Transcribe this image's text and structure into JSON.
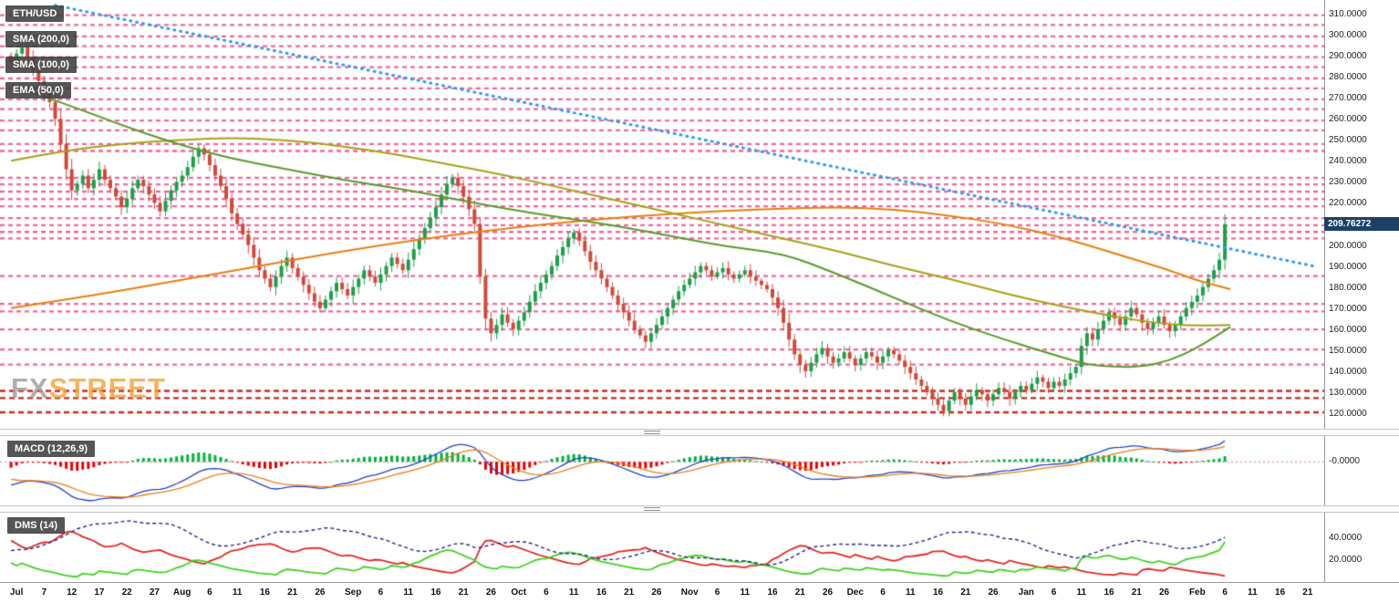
{
  "watermark": {
    "part1": "FX",
    "part2": "STREET"
  },
  "colors": {
    "up": "#1e9e4b",
    "down": "#cf4a3c",
    "trendline": "#2e9bf0",
    "pivot_pink": "#f4679d",
    "pivot_red": "#cc2a1e",
    "macd_line": "#2242c8",
    "macd_signal": "#ef7d1a",
    "hist_up": "#00b33c",
    "hist_down": "#e60000",
    "di_plus": "#3fd321",
    "di_minus": "#e02824",
    "adx": "#26268c",
    "price_badge_bg": "#1c4068"
  },
  "chart_data": {
    "type": "candlestick-multi-panel",
    "symbol": "ETH/USD",
    "x_axis": {
      "day_min": -2,
      "day_max": 238,
      "ticks": [
        {
          "day": 1,
          "label": "Jul"
        },
        {
          "day": 6,
          "label": "7"
        },
        {
          "day": 11,
          "label": "12"
        },
        {
          "day": 16,
          "label": "17"
        },
        {
          "day": 21,
          "label": "22"
        },
        {
          "day": 26,
          "label": "27"
        },
        {
          "day": 31,
          "label": "Aug"
        },
        {
          "day": 36,
          "label": "6"
        },
        {
          "day": 41,
          "label": "11"
        },
        {
          "day": 46,
          "label": "16"
        },
        {
          "day": 51,
          "label": "21"
        },
        {
          "day": 56,
          "label": "26"
        },
        {
          "day": 62,
          "label": "Sep"
        },
        {
          "day": 67,
          "label": "6"
        },
        {
          "day": 72,
          "label": "11"
        },
        {
          "day": 77,
          "label": "16"
        },
        {
          "day": 82,
          "label": "21"
        },
        {
          "day": 87,
          "label": "26"
        },
        {
          "day": 92,
          "label": "Oct"
        },
        {
          "day": 97,
          "label": "6"
        },
        {
          "day": 102,
          "label": "11"
        },
        {
          "day": 107,
          "label": "16"
        },
        {
          "day": 112,
          "label": "21"
        },
        {
          "day": 117,
          "label": "26"
        },
        {
          "day": 123,
          "label": "Nov"
        },
        {
          "day": 128,
          "label": "6"
        },
        {
          "day": 133,
          "label": "11"
        },
        {
          "day": 138,
          "label": "16"
        },
        {
          "day": 143,
          "label": "21"
        },
        {
          "day": 148,
          "label": "26"
        },
        {
          "day": 153,
          "label": "Dec"
        },
        {
          "day": 158,
          "label": "6"
        },
        {
          "day": 163,
          "label": "11"
        },
        {
          "day": 168,
          "label": "16"
        },
        {
          "day": 173,
          "label": "21"
        },
        {
          "day": 178,
          "label": "26"
        },
        {
          "day": 184,
          "label": "Jan"
        },
        {
          "day": 189,
          "label": "6"
        },
        {
          "day": 194,
          "label": "11"
        },
        {
          "day": 199,
          "label": "16"
        },
        {
          "day": 204,
          "label": "21"
        },
        {
          "day": 209,
          "label": "26"
        },
        {
          "day": 215,
          "label": "Feb"
        },
        {
          "day": 220,
          "label": "6"
        },
        {
          "day": 225,
          "label": "11"
        },
        {
          "day": 230,
          "label": "16"
        },
        {
          "day": 235,
          "label": "21"
        }
      ]
    },
    "main": {
      "price_at_top": 316.5,
      "price_at_bottom": 112.6,
      "y_axis_labels": [
        "310.0000",
        "300.0000",
        "290.0000",
        "280.0000",
        "270.0000",
        "260.0000",
        "250.0000",
        "240.0000",
        "230.0000",
        "220.0000",
        "210.0000",
        "200.0000",
        "190.0000",
        "180.0000",
        "170.0000",
        "160.0000",
        "150.0000",
        "140.0000",
        "130.0000",
        "120.0000"
      ],
      "last_price": "209.76272",
      "open_first": 290,
      "closes": [
        287,
        291,
        294,
        289,
        283,
        278,
        272,
        268,
        260,
        248,
        236,
        226,
        229,
        233,
        227,
        231,
        236,
        231,
        227,
        223,
        218,
        222,
        227,
        231,
        228,
        224,
        220,
        216,
        221,
        226,
        230,
        233,
        237,
        242,
        246,
        243,
        238,
        233,
        228,
        222,
        215,
        210,
        205,
        200,
        194,
        188,
        184,
        180,
        185,
        190,
        194,
        189,
        185,
        181,
        177,
        173,
        170,
        174,
        178,
        182,
        179,
        176,
        180,
        184,
        188,
        185,
        182,
        186,
        190,
        194,
        191,
        188,
        193,
        198,
        203,
        208,
        213,
        218,
        224,
        229,
        232,
        228,
        223,
        217,
        210,
        185,
        165,
        158,
        162,
        167,
        163,
        160,
        164,
        168,
        173,
        178,
        182,
        186,
        190,
        195,
        199,
        203,
        206,
        202,
        197,
        192,
        188,
        184,
        180,
        176,
        172,
        168,
        164,
        160,
        157,
        154,
        158,
        162,
        166,
        170,
        174,
        178,
        181,
        184,
        187,
        190,
        188,
        185,
        187,
        189,
        186,
        184,
        186,
        188,
        185,
        183,
        181,
        179,
        175,
        170,
        163,
        155,
        148,
        143,
        140,
        144,
        148,
        151,
        147,
        144,
        146,
        149,
        146,
        143,
        146,
        149,
        147,
        144,
        147,
        150,
        148,
        145,
        142,
        139,
        136,
        133,
        130,
        127,
        124,
        121,
        126,
        130,
        127,
        124,
        128,
        131,
        129,
        126,
        129,
        132,
        130,
        127,
        130,
        133,
        131,
        134,
        137,
        135,
        132,
        135,
        133,
        136,
        139,
        142,
        152,
        158,
        155,
        160,
        164,
        168,
        165,
        162,
        166,
        170,
        167,
        163,
        160,
        163,
        166,
        162,
        159,
        162,
        166,
        170,
        173,
        176,
        180,
        184,
        188,
        193,
        209.76272
      ],
      "pivot_lines_pink": [
        309.3,
        304.6,
        299.2,
        294.5,
        289.3,
        284.6,
        279.2,
        274.5,
        269.3,
        264.6,
        259.2,
        254.5,
        248.0,
        244.7,
        232.0,
        228.8,
        225.4,
        221.9,
        218.4,
        212.8,
        209.4,
        206.2,
        203.1,
        185.2,
        172.0,
        168.4,
        159.8,
        150.3,
        143.1
      ],
      "pivot_lines_red": [
        130.6,
        127.2,
        120.4
      ],
      "trendline": {
        "from": [
          8,
          314
        ],
        "to": [
          236,
          190
        ]
      },
      "overlays": [
        {
          "name": "SMA (200,0)",
          "color": "#e87f10",
          "points": [
            [
              0,
              170
            ],
            [
              15,
              176
            ],
            [
              30,
              183
            ],
            [
              45,
              190
            ],
            [
              60,
              197
            ],
            [
              75,
              203
            ],
            [
              90,
              208
            ],
            [
              105,
              212
            ],
            [
              120,
              215
            ],
            [
              135,
              217
            ],
            [
              150,
              218
            ],
            [
              160,
              217
            ],
            [
              170,
              214
            ],
            [
              180,
              210
            ],
            [
              190,
              204
            ],
            [
              200,
              196
            ],
            [
              210,
              188
            ],
            [
              215,
              183
            ],
            [
              221,
              179
            ]
          ]
        },
        {
          "name": "SMA (100,0)",
          "color": "#a8a018",
          "points": [
            [
              0,
              240
            ],
            [
              10,
              245
            ],
            [
              20,
              248
            ],
            [
              30,
              250
            ],
            [
              40,
              251
            ],
            [
              50,
              250
            ],
            [
              60,
              247
            ],
            [
              70,
              243
            ],
            [
              80,
              238
            ],
            [
              90,
              233
            ],
            [
              100,
              227
            ],
            [
              110,
              221
            ],
            [
              120,
              215
            ],
            [
              130,
              209
            ],
            [
              140,
              203
            ],
            [
              150,
              197
            ],
            [
              160,
              190
            ],
            [
              170,
              184
            ],
            [
              180,
              177
            ],
            [
              190,
              171
            ],
            [
              200,
              166
            ],
            [
              207,
              163
            ],
            [
              214,
              161.5
            ],
            [
              221,
              162
            ]
          ]
        },
        {
          "name": "EMA (50,0)",
          "color": "#579b2a",
          "points": [
            [
              0,
              276
            ],
            [
              10,
              267
            ],
            [
              20,
              257
            ],
            [
              30,
              248
            ],
            [
              40,
              241
            ],
            [
              50,
              236
            ],
            [
              60,
              231
            ],
            [
              70,
              227
            ],
            [
              80,
              222
            ],
            [
              90,
              217
            ],
            [
              100,
              213
            ],
            [
              110,
              209
            ],
            [
              120,
              204
            ],
            [
              130,
              199
            ],
            [
              140,
              196
            ],
            [
              150,
              186
            ],
            [
              160,
              175
            ],
            [
              170,
              164
            ],
            [
              180,
              155
            ],
            [
              190,
              147
            ],
            [
              195,
              143
            ],
            [
              200,
              142
            ],
            [
              205,
              142
            ],
            [
              210,
              145
            ],
            [
              215,
              151
            ],
            [
              221,
              161
            ]
          ]
        }
      ]
    },
    "macd": {
      "label": "MACD (12,26,9)",
      "params": [
        12,
        26,
        9
      ],
      "zero_label": "-0.0000"
    },
    "dms": {
      "label": "DMS (14)",
      "period": 14,
      "ticks": [
        {
          "v": 40,
          "label": "40.0000"
        },
        {
          "v": 20,
          "label": "20.0000"
        }
      ]
    }
  }
}
